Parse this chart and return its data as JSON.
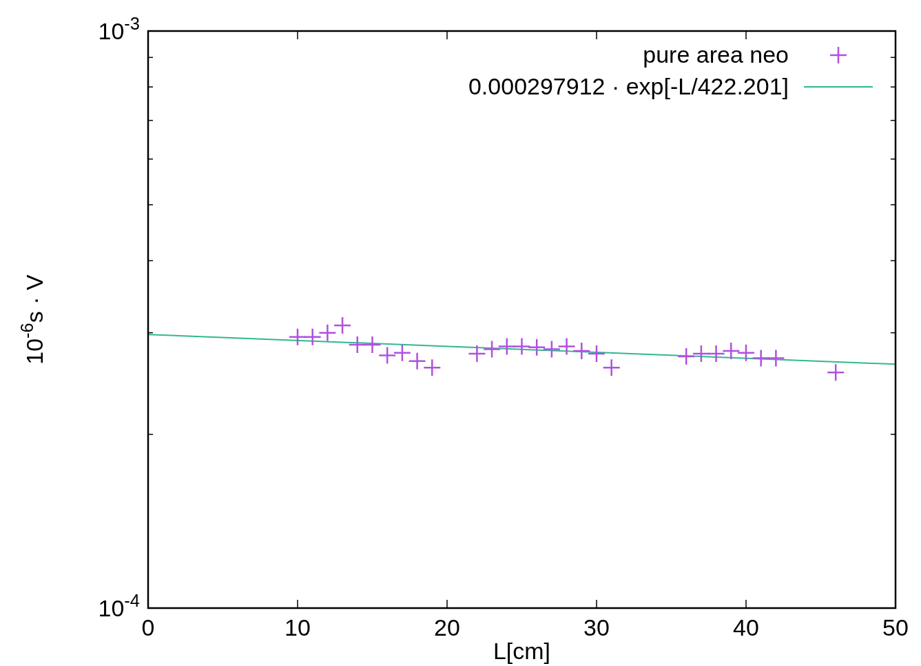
{
  "chart_data": {
    "type": "scatter",
    "xlabel": "L[cm]",
    "ylabel": "10$^{-6}$s · V",
    "log": "y",
    "xlim": [
      0,
      50
    ],
    "xticks": [
      0,
      10,
      20,
      30,
      40,
      50
    ],
    "ylim": [
      0.0001,
      0.001
    ],
    "yticks": [
      {
        "value": 0.0001,
        "label": "10$^{-4}$"
      },
      {
        "value": 0.0002,
        "label": null
      },
      {
        "value": 0.0003,
        "label": null
      },
      {
        "value": 0.0004,
        "label": null
      },
      {
        "value": 0.0005,
        "label": null
      },
      {
        "value": 0.0006,
        "label": null
      },
      {
        "value": 0.0007,
        "label": null
      },
      {
        "value": 0.0008,
        "label": null
      },
      {
        "value": 0.0009,
        "label": null
      },
      {
        "value": 0.001,
        "label": "10$^{-3}$"
      }
    ],
    "legend": "top right",
    "grid": false,
    "series": [
      {
        "name": "pure area neo",
        "marker": "cross",
        "color": "#b050e0",
        "x": [
          10,
          11,
          12,
          13,
          14,
          15,
          16,
          17,
          18,
          19,
          22,
          23,
          24,
          25,
          26,
          27,
          28,
          29,
          30,
          31,
          36,
          37,
          38,
          39,
          40,
          41,
          42,
          46
        ],
        "values": [
          0.000295,
          0.000295,
          0.0003,
          0.000309,
          0.000286,
          0.000286,
          0.000274,
          0.000277,
          0.000268,
          0.000261,
          0.000276,
          0.000281,
          0.000284,
          0.000284,
          0.000283,
          0.000281,
          0.000284,
          0.000279,
          0.000276,
          0.000261,
          0.000273,
          0.000276,
          0.000276,
          0.000279,
          0.000277,
          0.000271,
          0.000271,
          0.000256
        ]
      },
      {
        "name": "0.000297912 · exp[-L/422.201]",
        "type": "line",
        "color": "#30b890",
        "line_style": "solid",
        "x": [
          0,
          50
        ],
        "values": [
          0.000297912,
          0.00026464
        ]
      }
    ]
  }
}
